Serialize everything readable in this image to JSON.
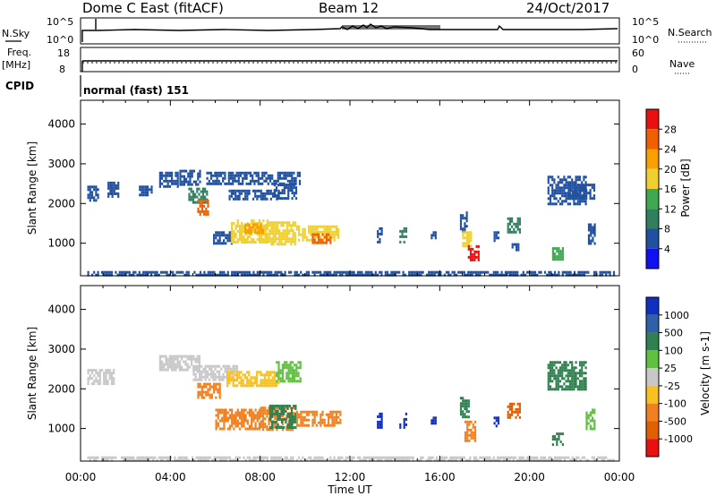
{
  "header": {
    "station": "Dome C East (fitACF)",
    "beam": "Beam 12",
    "date": "24/Oct/2017"
  },
  "top_panels": {
    "nsky_label": "N.Sky",
    "nsearch_label": "N.Search",
    "noise_ticks_left": [
      "10^5",
      "10^0"
    ],
    "noise_ticks_right": [
      "10^5",
      "10^0"
    ],
    "freq_label": "Freq.",
    "freq_unit": "[MHz]",
    "freq_ticks": [
      "18",
      "8"
    ],
    "nave_label": "Nave",
    "nave_ticks": [
      "60",
      "0"
    ],
    "cpid_label": "CPID",
    "cpid_value": "normal (fast) 151"
  },
  "chart_data": [
    {
      "type": "heatmap",
      "name": "power",
      "ylabel": "Slant Range [km]",
      "xlabel": "",
      "colorbar_label": "Power [dB]",
      "colorbar_ticks": [
        "28",
        "24",
        "20",
        "16",
        "12",
        "8",
        "4"
      ],
      "colorbar_colors": [
        "#e81010",
        "#f06000",
        "#f8a000",
        "#f0d030",
        "#40a850",
        "#308060",
        "#2050a0",
        "#1010f0"
      ],
      "ylim": [
        180,
        4600
      ],
      "y_ticks": [
        1000,
        2000,
        3000,
        4000
      ],
      "xlim": [
        0,
        24
      ],
      "x_ticks_hours": [
        0,
        4,
        8,
        12,
        16,
        20,
        24
      ],
      "cells": [
        [
          0.3,
          2100,
          0.8,
          2450,
          0.6
        ],
        [
          1.2,
          2200,
          1.7,
          2550,
          0.6
        ],
        [
          2.6,
          2200,
          3.2,
          2450,
          0.6
        ],
        [
          3.5,
          2450,
          4.3,
          2800,
          0.6
        ],
        [
          4.4,
          2450,
          5.3,
          2850,
          0.6
        ],
        [
          4.8,
          2050,
          5.6,
          2400,
          0.9
        ],
        [
          5.2,
          1750,
          5.7,
          2100,
          3.2
        ],
        [
          5.6,
          2500,
          9.8,
          2800,
          0.6
        ],
        [
          6.6,
          2100,
          8.8,
          2350,
          0.7
        ],
        [
          8.6,
          2150,
          9.6,
          2500,
          0.8
        ],
        [
          5.9,
          1000,
          6.7,
          1300,
          0.8
        ],
        [
          6.7,
          1050,
          8.3,
          1600,
          2.0
        ],
        [
          8.2,
          1000,
          9.6,
          1550,
          2.2
        ],
        [
          9.6,
          1050,
          11.5,
          1450,
          2.0
        ],
        [
          10.3,
          1000,
          11.1,
          1250,
          3.2
        ],
        [
          7.3,
          1250,
          8.1,
          1500,
          2.7
        ],
        [
          13.2,
          1000,
          13.4,
          1400,
          0.6
        ],
        [
          14.2,
          1050,
          14.5,
          1400,
          1.2
        ],
        [
          15.6,
          1100,
          15.8,
          1300,
          0.6
        ],
        [
          16.9,
          1300,
          17.2,
          1800,
          0.8
        ],
        [
          17.0,
          950,
          17.4,
          1300,
          2.0
        ],
        [
          17.25,
          600,
          17.75,
          950,
          3.9
        ],
        [
          18.4,
          1050,
          18.6,
          1300,
          0.8
        ],
        [
          19.0,
          1300,
          19.6,
          1650,
          1.3
        ],
        [
          19.2,
          800,
          19.5,
          1000,
          0.7
        ],
        [
          20.8,
          2000,
          22.5,
          2700,
          0.6
        ],
        [
          21.0,
          600,
          21.5,
          900,
          1.5
        ],
        [
          22.6,
          1000,
          22.9,
          1500,
          0.6
        ],
        [
          21.7,
          2100,
          22.9,
          2500,
          0.6
        ],
        [
          0.3,
          220,
          23.8,
          300,
          0.5
        ]
      ]
    },
    {
      "type": "heatmap",
      "name": "velocity",
      "ylabel": "Slant Range [km]",
      "xlabel": "Time UT",
      "colorbar_label": "Velocity [m s-1]",
      "colorbar_ticks": [
        "1000",
        "500",
        "100",
        "25",
        "-25",
        "-100",
        "-500",
        "-1000"
      ],
      "colorbar_colors": [
        "#1030c0",
        "#3060a8",
        "#308050",
        "#60c040",
        "#c8c8c8",
        "#f8c020",
        "#f08020",
        "#e06000",
        "#e81010"
      ],
      "ylim": [
        180,
        4600
      ],
      "y_ticks": [
        1000,
        2000,
        3000,
        4000
      ],
      "xlim": [
        0,
        24
      ],
      "x_ticks_hours": [
        0,
        4,
        8,
        12,
        16,
        20,
        24
      ],
      "x_tick_labels": [
        "00:00",
        "04:00",
        "08:00",
        "12:00",
        "16:00",
        "20:00",
        "00:00"
      ],
      "cells": [
        [
          0.3,
          2100,
          1.5,
          2500,
          4
        ],
        [
          3.5,
          2450,
          5.3,
          2850,
          4
        ],
        [
          5.0,
          2200,
          7.0,
          2600,
          4
        ],
        [
          5.2,
          1800,
          6.2,
          2150,
          6
        ],
        [
          6.5,
          2100,
          8.8,
          2450,
          5
        ],
        [
          8.7,
          2200,
          9.8,
          2700,
          3
        ],
        [
          6.0,
          1000,
          8.0,
          1500,
          6
        ],
        [
          8.0,
          1000,
          9.5,
          1550,
          6
        ],
        [
          8.4,
          1050,
          9.6,
          1600,
          2
        ],
        [
          9.6,
          1050,
          11.6,
          1450,
          6
        ],
        [
          13.2,
          1000,
          13.4,
          1400,
          0
        ],
        [
          14.2,
          1050,
          14.5,
          1400,
          0
        ],
        [
          15.6,
          1100,
          15.8,
          1300,
          0
        ],
        [
          16.9,
          1300,
          17.3,
          1800,
          2
        ],
        [
          17.1,
          700,
          17.6,
          1200,
          6
        ],
        [
          18.4,
          1050,
          18.6,
          1300,
          0
        ],
        [
          19.0,
          1300,
          19.6,
          1650,
          7
        ],
        [
          21.0,
          600,
          21.5,
          900,
          2
        ],
        [
          20.8,
          2000,
          22.5,
          2700,
          2
        ],
        [
          22.5,
          1000,
          22.9,
          1500,
          3
        ],
        [
          0.3,
          220,
          23.8,
          300,
          4
        ]
      ]
    }
  ]
}
